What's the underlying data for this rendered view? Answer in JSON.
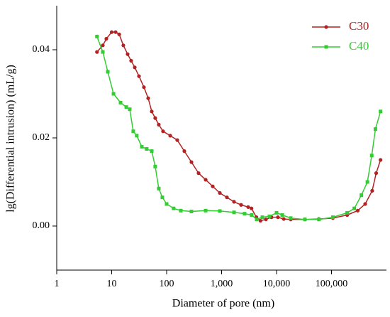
{
  "chart_data": {
    "type": "line",
    "xlabel": "Diameter of pore (nm)",
    "ylabel": "lg(Differential intrusion) (mL/g)",
    "xscale": "log",
    "xlim": [
      1,
      1000000
    ],
    "ylim": [
      -0.01,
      0.05
    ],
    "xticks": [
      1,
      10,
      100,
      {
        "value": 1000,
        "label": "1,000"
      },
      {
        "value": 10000,
        "label": "10,000"
      },
      {
        "value": 100000,
        "label": "100,000"
      }
    ],
    "yticks": [
      {
        "value": 0,
        "label": "0.00"
      },
      {
        "value": 0.02,
        "label": "0.02"
      },
      {
        "value": 0.04,
        "label": "0.04"
      }
    ],
    "legend": "upper right",
    "series": [
      {
        "name": "C30",
        "color": "#b22222",
        "marker": "circle",
        "x": [
          5.4,
          6.9,
          8,
          10,
          11.8,
          13.7,
          16.3,
          19.5,
          22.6,
          26.3,
          31.4,
          38.6,
          46.2,
          53.6,
          62,
          72,
          86,
          116,
          156,
          210,
          283,
          381,
          513,
          690,
          929,
          1250,
          1683,
          2264,
          3048,
          3500,
          4300,
          5100,
          6400,
          8100,
          10600,
          13500,
          18100,
          32800,
          59000,
          106000,
          193000,
          300000,
          410000,
          550000,
          650000,
          780000
        ],
        "values": [
          0.0395,
          0.041,
          0.0425,
          0.044,
          0.044,
          0.0435,
          0.041,
          0.039,
          0.0375,
          0.036,
          0.034,
          0.0315,
          0.029,
          0.026,
          0.0245,
          0.023,
          0.0215,
          0.0205,
          0.0195,
          0.017,
          0.0145,
          0.012,
          0.0105,
          0.009,
          0.0075,
          0.0065,
          0.0055,
          0.0048,
          0.0043,
          0.004,
          0.002,
          0.0012,
          0.0015,
          0.002,
          0.002,
          0.0016,
          0.0015,
          0.0015,
          0.0016,
          0.0018,
          0.0025,
          0.0035,
          0.005,
          0.008,
          0.012,
          0.015
        ]
      },
      {
        "name": "C40",
        "color": "#33cc33",
        "marker": "square",
        "x": [
          5.4,
          6.9,
          8.5,
          10.8,
          14.5,
          18.4,
          21.3,
          24.7,
          28.6,
          35.3,
          43.3,
          53.6,
          62,
          72,
          83.6,
          100,
          134,
          181,
          283,
          513,
          929,
          1683,
          2617,
          3527,
          4346,
          5520,
          7430,
          10000,
          12700,
          18100,
          32800,
          59000,
          106000,
          193000,
          260000,
          350000,
          450000,
          540000,
          630000,
          780000
        ],
        "values": [
          0.043,
          0.0395,
          0.035,
          0.03,
          0.028,
          0.027,
          0.0265,
          0.0215,
          0.0205,
          0.018,
          0.0175,
          0.017,
          0.0135,
          0.0085,
          0.0065,
          0.005,
          0.004,
          0.0035,
          0.0033,
          0.0035,
          0.0034,
          0.0031,
          0.0028,
          0.0025,
          0.0015,
          0.002,
          0.0022,
          0.003,
          0.0025,
          0.0018,
          0.0015,
          0.0015,
          0.002,
          0.003,
          0.004,
          0.007,
          0.01,
          0.016,
          0.022,
          0.026
        ]
      }
    ]
  }
}
